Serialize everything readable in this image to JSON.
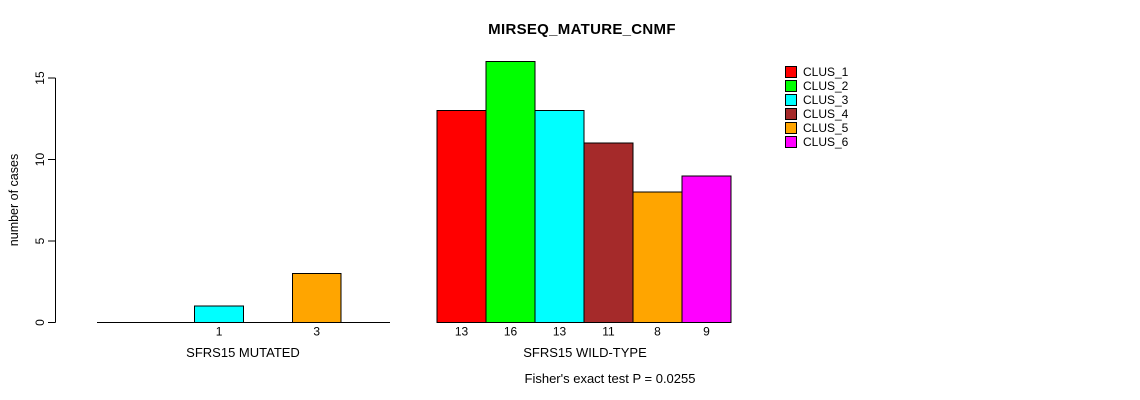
{
  "title": "MIRSEQ_MATURE_CNMF",
  "ylabel": "number of cases",
  "annotation": "Fisher's exact test P = 0.0255",
  "chart_data": {
    "type": "bar",
    "title": "MIRSEQ_MATURE_CNMF",
    "ylabel": "number of cases",
    "xlabel": "",
    "ylim": [
      0,
      16
    ],
    "yticks": [
      0,
      5,
      10,
      15
    ],
    "grid": false,
    "categories": [
      "CLUS_1",
      "CLUS_2",
      "CLUS_3",
      "CLUS_4",
      "CLUS_5",
      "CLUS_6"
    ],
    "colors": [
      "#FF0000",
      "#00FF00",
      "#00FFFF",
      "#A52A2A",
      "#FFA500",
      "#FF00FF"
    ],
    "groups": [
      {
        "label": "SFRS15 MUTATED",
        "values": [
          0,
          0,
          1,
          0,
          3,
          0
        ],
        "bar_labels": [
          "",
          "",
          "1",
          "",
          "3",
          ""
        ]
      },
      {
        "label": "SFRS15 WILD-TYPE",
        "values": [
          13,
          16,
          13,
          11,
          8,
          9
        ],
        "bar_labels": [
          "13",
          "16",
          "13",
          "11",
          "8",
          "9"
        ]
      }
    ],
    "annotation": "Fisher's exact test P = 0.0255",
    "legend_position": "right",
    "legend_entries": [
      "CLUS_1",
      "CLUS_2",
      "CLUS_3",
      "CLUS_4",
      "CLUS_5",
      "CLUS_6"
    ]
  }
}
